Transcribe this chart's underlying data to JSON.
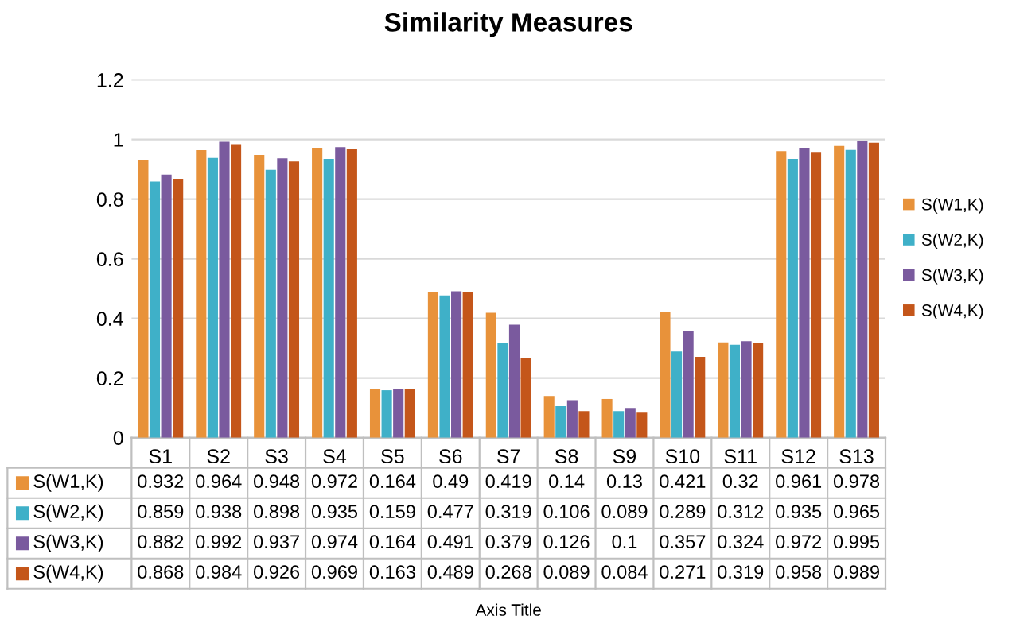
{
  "chart_data": {
    "type": "bar",
    "title": "Similarity Measures",
    "annotations": [
      "Axis Title"
    ],
    "categories": [
      "S1",
      "S2",
      "S3",
      "S4",
      "S5",
      "S6",
      "S7",
      "S8",
      "S9",
      "S10",
      "S11",
      "S12",
      "S13"
    ],
    "series": [
      {
        "name": "S(W1,K)",
        "color": "#e8923a",
        "values": [
          0.932,
          0.964,
          0.948,
          0.972,
          0.164,
          0.49,
          0.419,
          0.14,
          0.13,
          0.421,
          0.32,
          0.961,
          0.978
        ]
      },
      {
        "name": "S(W2,K)",
        "color": "#3fb0c8",
        "values": [
          0.859,
          0.938,
          0.898,
          0.935,
          0.159,
          0.477,
          0.319,
          0.106,
          0.089,
          0.289,
          0.312,
          0.935,
          0.965
        ]
      },
      {
        "name": "S(W3,K)",
        "color": "#7a5a9e",
        "values": [
          0.882,
          0.992,
          0.937,
          0.974,
          0.164,
          0.491,
          0.379,
          0.126,
          0.1,
          0.357,
          0.324,
          0.972,
          0.995
        ]
      },
      {
        "name": "S(W4,K)",
        "color": "#c4561a",
        "values": [
          0.868,
          0.984,
          0.926,
          0.969,
          0.163,
          0.489,
          0.268,
          0.089,
          0.084,
          0.271,
          0.319,
          0.958,
          0.989
        ]
      }
    ],
    "ylim": [
      0,
      1.2
    ],
    "yticks": [
      0,
      0.2,
      0.4,
      0.6,
      0.8,
      1,
      1.2
    ],
    "grid": "y",
    "legend": "right",
    "data_labels": true
  }
}
